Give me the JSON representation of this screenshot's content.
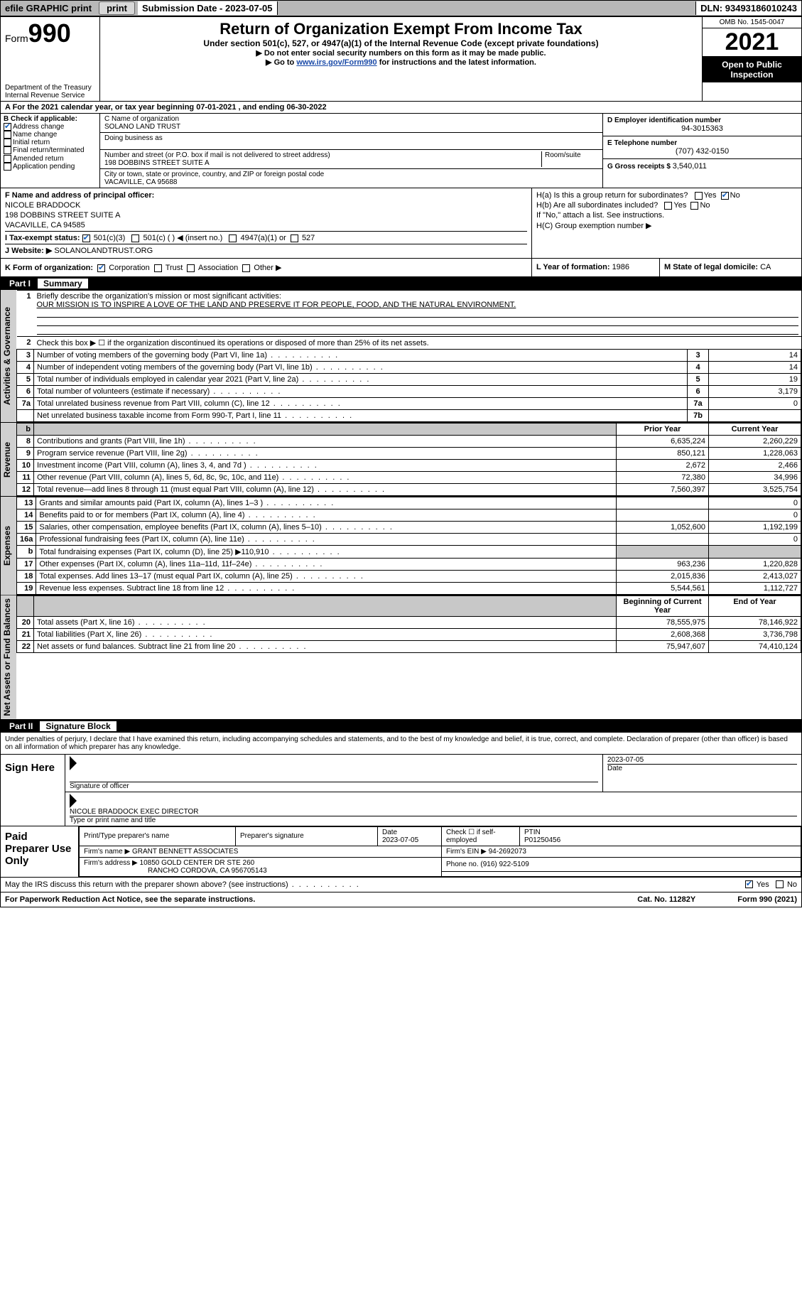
{
  "colors": {
    "topbar_bg": "#b8b8b8",
    "btn_bg": "#d8d8d8",
    "black": "#000000",
    "white": "#ffffff",
    "link": "#1a4aa8",
    "check": "#1560bd",
    "shade": "#c8c8c8",
    "side": "#d0d0d0"
  },
  "topbar": {
    "efile": "efile GRAPHIC print",
    "subdate_lbl": "Submission Date - ",
    "subdate": "2023-07-05",
    "dln_lbl": "DLN: ",
    "dln": "93493186010243"
  },
  "header": {
    "form_word": "Form",
    "form_num": "990",
    "dept": "Department of the Treasury",
    "irs": "Internal Revenue Service",
    "title": "Return of Organization Exempt From Income Tax",
    "sub1": "Under section 501(c), 527, or 4947(a)(1) of the Internal Revenue Code (except private foundations)",
    "sub2": "▶ Do not enter social security numbers on this form as it may be made public.",
    "sub3_pre": "▶ Go to ",
    "sub3_link": "www.irs.gov/Form990",
    "sub3_post": " for instructions and the latest information.",
    "omb": "OMB No. 1545-0047",
    "year": "2021",
    "otp": "Open to Public Inspection"
  },
  "rowA": {
    "text_pre": "A For the 2021 calendar year, or tax year beginning ",
    "begin": "07-01-2021",
    "mid": "  , and ending ",
    "end": "06-30-2022"
  },
  "colB": {
    "hdr": "B Check if applicable:",
    "items": [
      {
        "label": "Address change",
        "checked": true
      },
      {
        "label": "Name change",
        "checked": false
      },
      {
        "label": "Initial return",
        "checked": false
      },
      {
        "label": "Final return/terminated",
        "checked": false
      },
      {
        "label": "Amended return",
        "checked": false
      },
      {
        "label": "Application pending",
        "checked": false
      }
    ]
  },
  "colC": {
    "name_lbl": "C Name of organization",
    "name": "SOLANO LAND TRUST",
    "dba_lbl": "Doing business as",
    "dba": "",
    "street_lbl": "Number and street (or P.O. box if mail is not delivered to street address)",
    "room_lbl": "Room/suite",
    "street": "198 DOBBINS STREET SUITE A",
    "city_lbl": "City or town, state or province, country, and ZIP or foreign postal code",
    "city": "VACAVILLE, CA  95688"
  },
  "colDE": {
    "d_lbl": "D Employer identification number",
    "ein": "94-3015363",
    "e_lbl": "E Telephone number",
    "phone": "(707) 432-0150",
    "g_lbl": "G Gross receipts $ ",
    "gross": "3,540,011"
  },
  "rowF": {
    "lbl": "F  Name and address of principal officer:",
    "name": "NICOLE BRADDOCK",
    "addr1": "198 DOBBINS STREET SUITE A",
    "addr2": "VACAVILLE, CA  94585"
  },
  "rowH": {
    "ha": "H(a)  Is this a group return for subordinates?",
    "ha_yes": "Yes",
    "ha_no": "No",
    "hb": "H(b)  Are all subordinates included?",
    "hb_yes": "Yes",
    "hb_no": "No",
    "hb_note": "If \"No,\" attach a list. See instructions.",
    "hc": "H(C)  Group exemption number ▶"
  },
  "rowI": {
    "lbl": "I   Tax-exempt status:",
    "c501c3": "501(c)(3)",
    "c501c": "501(c) (   ) ◀ (insert no.)",
    "c4947": "4947(a)(1) or",
    "c527": "527"
  },
  "rowJ": {
    "lbl": "J   Website: ▶ ",
    "site": "SOLANOLANDTRUST.ORG"
  },
  "rowK": {
    "lbl": "K Form of organization:",
    "opts": [
      "Corporation",
      "Trust",
      "Association",
      "Other ▶"
    ],
    "l_lbl": "L Year of formation: ",
    "l_val": "1986",
    "m_lbl": "M State of legal domicile: ",
    "m_val": "CA"
  },
  "part1": {
    "label": "Part I",
    "title": "Summary",
    "sections": {
      "governance": "Activities & Governance",
      "revenue": "Revenue",
      "expenses": "Expenses",
      "netassets": "Net Assets or Fund Balances"
    },
    "line1_lbl": "Briefly describe the organization's mission or most significant activities:",
    "line1_val": "OUR MISSION IS TO INSPIRE A LOVE OF THE LAND AND PRESERVE IT FOR PEOPLE, FOOD, AND THE NATURAL ENVIRONMENT.",
    "line2": "Check this box ▶ ☐  if the organization discontinued its operations or disposed of more than 25% of its net assets.",
    "rows_gov": [
      {
        "n": "3",
        "d": "Number of voting members of the governing body (Part VI, line 1a)",
        "box": "3",
        "v": "14"
      },
      {
        "n": "4",
        "d": "Number of independent voting members of the governing body (Part VI, line 1b)",
        "box": "4",
        "v": "14"
      },
      {
        "n": "5",
        "d": "Total number of individuals employed in calendar year 2021 (Part V, line 2a)",
        "box": "5",
        "v": "19"
      },
      {
        "n": "6",
        "d": "Total number of volunteers (estimate if necessary)",
        "box": "6",
        "v": "3,179"
      },
      {
        "n": "7a",
        "d": "Total unrelated business revenue from Part VIII, column (C), line 12",
        "box": "7a",
        "v": "0"
      },
      {
        "n": "",
        "d": "Net unrelated business taxable income from Form 990-T, Part I, line 11",
        "box": "7b",
        "v": ""
      }
    ],
    "col_py": "Prior Year",
    "col_cy": "Current Year",
    "rows_rev": [
      {
        "n": "8",
        "d": "Contributions and grants (Part VIII, line 1h)",
        "py": "6,635,224",
        "cy": "2,260,229"
      },
      {
        "n": "9",
        "d": "Program service revenue (Part VIII, line 2g)",
        "py": "850,121",
        "cy": "1,228,063"
      },
      {
        "n": "10",
        "d": "Investment income (Part VIII, column (A), lines 3, 4, and 7d )",
        "py": "2,672",
        "cy": "2,466"
      },
      {
        "n": "11",
        "d": "Other revenue (Part VIII, column (A), lines 5, 6d, 8c, 9c, 10c, and 11e)",
        "py": "72,380",
        "cy": "34,996"
      },
      {
        "n": "12",
        "d": "Total revenue—add lines 8 through 11 (must equal Part VIII, column (A), line 12)",
        "py": "7,560,397",
        "cy": "3,525,754"
      }
    ],
    "rows_exp": [
      {
        "n": "13",
        "d": "Grants and similar amounts paid (Part IX, column (A), lines 1–3 )",
        "py": "",
        "cy": "0"
      },
      {
        "n": "14",
        "d": "Benefits paid to or for members (Part IX, column (A), line 4)",
        "py": "",
        "cy": "0"
      },
      {
        "n": "15",
        "d": "Salaries, other compensation, employee benefits (Part IX, column (A), lines 5–10)",
        "py": "1,052,600",
        "cy": "1,192,199"
      },
      {
        "n": "16a",
        "d": "Professional fundraising fees (Part IX, column (A), line 11e)",
        "py": "",
        "cy": "0"
      },
      {
        "n": "b",
        "d": "Total fundraising expenses (Part IX, column (D), line 25) ▶110,910",
        "py": "SHADE",
        "cy": "SHADE"
      },
      {
        "n": "17",
        "d": "Other expenses (Part IX, column (A), lines 11a–11d, 11f–24e)",
        "py": "963,236",
        "cy": "1,220,828"
      },
      {
        "n": "18",
        "d": "Total expenses. Add lines 13–17 (must equal Part IX, column (A), line 25)",
        "py": "2,015,836",
        "cy": "2,413,027"
      },
      {
        "n": "19",
        "d": "Revenue less expenses. Subtract line 18 from line 12",
        "py": "5,544,561",
        "cy": "1,112,727"
      }
    ],
    "col_boy": "Beginning of Current Year",
    "col_eoy": "End of Year",
    "rows_net": [
      {
        "n": "20",
        "d": "Total assets (Part X, line 16)",
        "py": "78,555,975",
        "cy": "78,146,922"
      },
      {
        "n": "21",
        "d": "Total liabilities (Part X, line 26)",
        "py": "2,608,368",
        "cy": "3,736,798"
      },
      {
        "n": "22",
        "d": "Net assets or fund balances. Subtract line 21 from line 20",
        "py": "75,947,607",
        "cy": "74,410,124"
      }
    ]
  },
  "part2": {
    "label": "Part II",
    "title": "Signature Block",
    "intro": "Under penalties of perjury, I declare that I have examined this return, including accompanying schedules and statements, and to the best of my knowledge and belief, it is true, correct, and complete. Declaration of preparer (other than officer) is based on all information of which preparer has any knowledge."
  },
  "sign": {
    "here": "Sign Here",
    "sig_lbl": "Signature of officer",
    "date_lbl": "Date",
    "date": "2023-07-05",
    "name": "NICOLE BRADDOCK  EXEC DIRECTOR",
    "name_lbl": "Type or print name and title"
  },
  "prep": {
    "here": "Paid Preparer Use Only",
    "h1": "Print/Type preparer's name",
    "h2": "Preparer's signature",
    "h3": "Date",
    "h3v": "2023-07-05",
    "h4": "Check ☐ if self-employed",
    "h5": "PTIN",
    "ptin": "P01250456",
    "firm_name_lbl": "Firm's name    ▶ ",
    "firm_name": "GRANT BENNETT ASSOCIATES",
    "firm_ein_lbl": "Firm's EIN ▶ ",
    "firm_ein": "94-2692073",
    "firm_addr_lbl": "Firm's address ▶ ",
    "firm_addr1": "10850 GOLD CENTER DR STE 260",
    "firm_addr2": "RANCHO CORDOVA, CA  956705143",
    "phone_lbl": "Phone no. ",
    "phone": "(916) 922-5109"
  },
  "footer": {
    "discuss": "May the IRS discuss this return with the preparer shown above? (see instructions)",
    "yes": "Yes",
    "no": "No",
    "pra": "For Paperwork Reduction Act Notice, see the separate instructions.",
    "cat": "Cat. No. 11282Y",
    "form": "Form 990 (2021)"
  }
}
